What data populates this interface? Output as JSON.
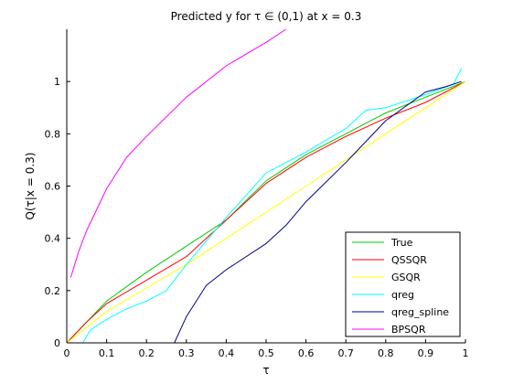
{
  "chart_data": {
    "type": "line",
    "title": "Predicted y for τ ∈ (0,1) at x = 0.3",
    "xlabel": "τ",
    "ylabel": "Q(τ|x = 0.3)",
    "xlim": [
      0,
      1
    ],
    "ylim": [
      0,
      1.2
    ],
    "xticks": [
      0,
      0.1,
      0.2,
      0.3,
      0.4,
      0.5,
      0.6,
      0.7,
      0.8,
      0.9,
      1
    ],
    "yticks": [
      0,
      0.2,
      0.4,
      0.6,
      0.8,
      1
    ],
    "grid": false,
    "legend_position": "bottom-right",
    "series": [
      {
        "name": "True",
        "color": "#00cc00",
        "x": [
          0,
          0.1,
          0.2,
          0.3,
          0.4,
          0.5,
          0.6,
          0.7,
          0.8,
          0.9,
          1.0
        ],
        "y": [
          0.0,
          0.16,
          0.27,
          0.37,
          0.47,
          0.62,
          0.72,
          0.8,
          0.88,
          0.94,
          1.0
        ]
      },
      {
        "name": "QSSQR",
        "color": "#ff0000",
        "x": [
          0,
          0.05,
          0.1,
          0.2,
          0.3,
          0.4,
          0.5,
          0.6,
          0.7,
          0.8,
          0.9,
          1.0
        ],
        "y": [
          0.0,
          0.08,
          0.15,
          0.24,
          0.33,
          0.47,
          0.61,
          0.71,
          0.79,
          0.86,
          0.92,
          1.0
        ]
      },
      {
        "name": "GSQR",
        "color": "#ffff00",
        "x": [
          0,
          0.1,
          0.2,
          0.3,
          0.4,
          0.5,
          0.6,
          0.7,
          0.8,
          0.9,
          1.0
        ],
        "y": [
          0.0,
          0.12,
          0.21,
          0.3,
          0.4,
          0.5,
          0.6,
          0.7,
          0.8,
          0.9,
          1.0
        ]
      },
      {
        "name": "qreg",
        "color": "#00ffff",
        "x": [
          0.04,
          0.06,
          0.1,
          0.15,
          0.2,
          0.25,
          0.3,
          0.4,
          0.5,
          0.6,
          0.7,
          0.75,
          0.8,
          0.9,
          0.97,
          0.99
        ],
        "y": [
          0.0,
          0.05,
          0.09,
          0.13,
          0.16,
          0.2,
          0.3,
          0.48,
          0.65,
          0.73,
          0.82,
          0.89,
          0.9,
          0.95,
          0.99,
          1.05
        ]
      },
      {
        "name": "qreg_spline",
        "color": "#00008b",
        "x": [
          0.27,
          0.3,
          0.35,
          0.4,
          0.5,
          0.55,
          0.6,
          0.7,
          0.8,
          0.9,
          0.95,
          0.99
        ],
        "y": [
          0.0,
          0.1,
          0.22,
          0.28,
          0.38,
          0.45,
          0.54,
          0.69,
          0.85,
          0.96,
          0.98,
          1.0
        ]
      },
      {
        "name": "BPSQR",
        "color": "#ff00ff",
        "x": [
          0.01,
          0.03,
          0.05,
          0.1,
          0.15,
          0.2,
          0.3,
          0.4,
          0.5,
          0.55
        ],
        "y": [
          0.25,
          0.35,
          0.43,
          0.59,
          0.71,
          0.79,
          0.94,
          1.06,
          1.15,
          1.2
        ]
      }
    ]
  }
}
